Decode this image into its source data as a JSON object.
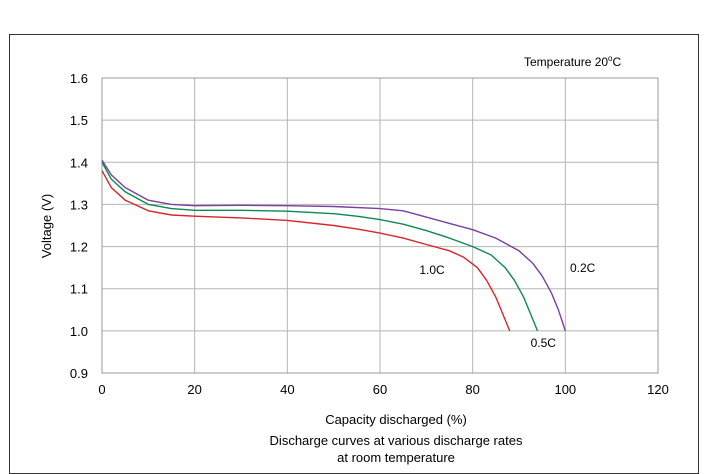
{
  "chart_data": {
    "type": "line",
    "annotation_temperature": "Temperature 20",
    "annotation_degree": "o",
    "annotation_unit": "C",
    "xlabel": "Capacity discharged (%)",
    "ylabel": "Voltage (V)",
    "caption_line1": "Discharge curves at various discharge rates",
    "caption_line2": "at room temperature",
    "xlim": [
      0,
      120
    ],
    "ylim": [
      0.9,
      1.6
    ],
    "x_ticks": [
      0,
      20,
      40,
      60,
      80,
      100,
      120
    ],
    "y_ticks": [
      0.9,
      1.0,
      1.1,
      1.2,
      1.3,
      1.4,
      1.5,
      1.6
    ],
    "x_tick_labels": [
      "0",
      "20",
      "40",
      "60",
      "80",
      "100",
      "120"
    ],
    "y_tick_labels": [
      "0.9",
      "1.0",
      "1.1",
      "1.2",
      "1.3",
      "1.4",
      "1.5",
      "1.6"
    ],
    "grid": true,
    "series": [
      {
        "name": "0.2C",
        "color": "#7b3f9e",
        "label_x": 101,
        "label_y": 1.14,
        "points": [
          [
            0,
            1.405
          ],
          [
            2,
            1.37
          ],
          [
            5,
            1.34
          ],
          [
            10,
            1.31
          ],
          [
            15,
            1.3
          ],
          [
            20,
            1.297
          ],
          [
            30,
            1.298
          ],
          [
            40,
            1.297
          ],
          [
            50,
            1.295
          ],
          [
            60,
            1.29
          ],
          [
            65,
            1.285
          ],
          [
            70,
            1.27
          ],
          [
            75,
            1.255
          ],
          [
            80,
            1.24
          ],
          [
            85,
            1.22
          ],
          [
            90,
            1.19
          ],
          [
            93,
            1.16
          ],
          [
            95,
            1.13
          ],
          [
            97,
            1.09
          ],
          [
            98.5,
            1.05
          ],
          [
            100,
            1.0
          ]
        ]
      },
      {
        "name": "0.5C",
        "color": "#0d8a4e",
        "label_x": 92.5,
        "label_y": 0.962,
        "points": [
          [
            0,
            1.4
          ],
          [
            2,
            1.36
          ],
          [
            5,
            1.33
          ],
          [
            10,
            1.3
          ],
          [
            15,
            1.29
          ],
          [
            20,
            1.286
          ],
          [
            30,
            1.286
          ],
          [
            40,
            1.284
          ],
          [
            50,
            1.278
          ],
          [
            55,
            1.272
          ],
          [
            60,
            1.264
          ],
          [
            65,
            1.253
          ],
          [
            70,
            1.238
          ],
          [
            75,
            1.22
          ],
          [
            80,
            1.2
          ],
          [
            84,
            1.18
          ],
          [
            87,
            1.15
          ],
          [
            89,
            1.12
          ],
          [
            91,
            1.08
          ],
          [
            92.5,
            1.04
          ],
          [
            94,
            1.0
          ]
        ]
      },
      {
        "name": "1.0C",
        "color": "#d6262b",
        "label_x": 68.5,
        "label_y": 1.135,
        "points": [
          [
            0,
            1.38
          ],
          [
            2,
            1.34
          ],
          [
            5,
            1.31
          ],
          [
            10,
            1.285
          ],
          [
            15,
            1.275
          ],
          [
            20,
            1.272
          ],
          [
            30,
            1.268
          ],
          [
            40,
            1.262
          ],
          [
            50,
            1.25
          ],
          [
            55,
            1.242
          ],
          [
            60,
            1.232
          ],
          [
            65,
            1.22
          ],
          [
            70,
            1.205
          ],
          [
            75,
            1.19
          ],
          [
            78,
            1.175
          ],
          [
            81,
            1.15
          ],
          [
            83,
            1.12
          ],
          [
            85,
            1.08
          ],
          [
            86.5,
            1.04
          ],
          [
            88,
            1.0
          ]
        ]
      }
    ]
  }
}
